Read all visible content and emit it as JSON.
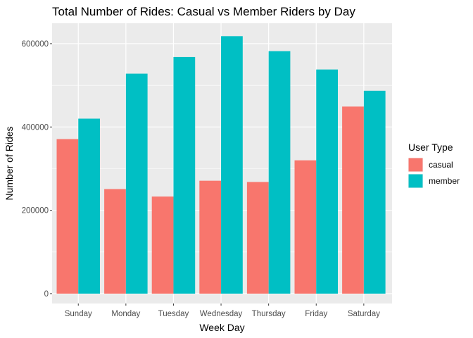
{
  "chart_data": {
    "type": "bar",
    "title": "Total Number of Rides: Casual vs Member Riders by Day",
    "xlabel": "Week Day",
    "ylabel": "Number of Rides",
    "categories": [
      "Sunday",
      "Monday",
      "Tuesday",
      "Wednesday",
      "Thursday",
      "Friday",
      "Saturday"
    ],
    "series": [
      {
        "name": "casual",
        "color": "#F8766D",
        "values": [
          371000,
          251000,
          233000,
          271000,
          268000,
          320000,
          449000
        ]
      },
      {
        "name": "member",
        "color": "#00BFC4",
        "values": [
          420000,
          528000,
          568000,
          618000,
          582000,
          538000,
          487000
        ]
      }
    ],
    "ylim": [
      0,
      640000
    ],
    "yticks": [
      0,
      200000,
      400000,
      600000
    ],
    "ytick_labels": [
      "0",
      "200000",
      "400000",
      "600000"
    ],
    "grid": true,
    "legend": {
      "title": "User Type",
      "position": "right"
    },
    "panel_background": "#EBEBEB",
    "grid_color": "#FFFFFF"
  }
}
